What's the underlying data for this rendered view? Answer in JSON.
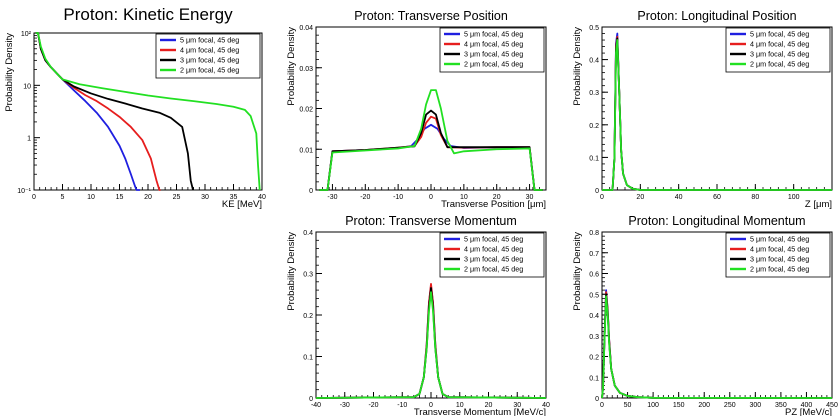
{
  "colors": {
    "blue": "#1f1fe0",
    "red": "#e61e1e",
    "black": "#000000",
    "green": "#22e022"
  },
  "legend_labels": [
    "5 μm focal, 45 deg",
    "4 μm focal, 45 deg",
    "3 μm focal, 45 deg",
    "2 μm focal, 45 deg"
  ],
  "chart_data": [
    {
      "id": "ke",
      "type": "line",
      "title": "Proton: Kinetic Energy",
      "xlabel": "KE [MeV]",
      "ylabel": "Probability Density",
      "xlim": [
        0,
        40
      ],
      "ylim": [
        0.1,
        100
      ],
      "log_y": true,
      "x_ticks": [
        0,
        5,
        10,
        15,
        20,
        25,
        30,
        35,
        40
      ],
      "y_ticks": [
        {
          "v": 0.1,
          "label": "10⁻¹"
        },
        {
          "v": 1,
          "label": "1"
        },
        {
          "v": 10,
          "label": "10"
        },
        {
          "v": 100,
          "label": "10²"
        }
      ],
      "series": [
        {
          "name": "5 μm focal, 45 deg",
          "color": "blue",
          "x": [
            0.3,
            0.7,
            1.2,
            2,
            3,
            5,
            7,
            9,
            11,
            13,
            15,
            16,
            17,
            17.7,
            18,
            18.3,
            18.6
          ],
          "y": [
            200,
            100,
            50,
            30,
            22,
            13,
            8,
            5,
            3,
            1.6,
            0.7,
            0.4,
            0.2,
            0.12,
            0.1,
            0.1,
            0.1
          ]
        },
        {
          "name": "4 μm focal, 45 deg",
          "color": "red",
          "x": [
            0.3,
            0.7,
            1.2,
            2,
            3,
            5,
            7,
            9,
            11,
            13,
            15,
            17,
            19,
            20.5,
            21.5,
            22,
            22.2
          ],
          "y": [
            200,
            100,
            50,
            30,
            22,
            13,
            9,
            6.5,
            5,
            3.6,
            2.5,
            1.6,
            0.9,
            0.4,
            0.15,
            0.1,
            0.1
          ]
        },
        {
          "name": "3 μm focal, 45 deg",
          "color": "black",
          "x": [
            0.3,
            0.7,
            1.2,
            2,
            3,
            5,
            7,
            10,
            13,
            16,
            19,
            22,
            24,
            26,
            27,
            27.5,
            27.9
          ],
          "y": [
            200,
            100,
            50,
            30,
            22,
            13,
            9.5,
            7,
            5.5,
            4.5,
            3.6,
            3,
            2.4,
            1.6,
            0.5,
            0.15,
            0.1
          ]
        },
        {
          "name": "2 μm focal, 45 deg",
          "color": "green",
          "x": [
            0.3,
            0.7,
            1.2,
            2,
            3,
            5,
            8,
            12,
            16,
            20,
            24,
            28,
            32,
            35,
            37,
            38,
            39,
            39.3,
            39.6
          ],
          "y": [
            220,
            110,
            55,
            32,
            22,
            13,
            10.5,
            8.8,
            7.5,
            6.4,
            5.6,
            5,
            4.4,
            3.9,
            3.4,
            2.6,
            1.2,
            0.3,
            0.1
          ]
        }
      ]
    },
    {
      "id": "trans_pos",
      "type": "line",
      "title": "Proton: Transverse Position",
      "xlabel": "Transverse Position [μm]",
      "ylabel": "Probability Density",
      "xlim": [
        -35,
        35
      ],
      "ylim": [
        0,
        0.04
      ],
      "x_ticks": [
        -30,
        -20,
        -10,
        0,
        10,
        20,
        30
      ],
      "y_ticks": [
        {
          "v": 0,
          "label": "0"
        },
        {
          "v": 0.01,
          "label": "0.01"
        },
        {
          "v": 0.02,
          "label": "0.02"
        },
        {
          "v": 0.03,
          "label": "0.03"
        },
        {
          "v": 0.04,
          "label": "0.04"
        }
      ],
      "series": [
        {
          "name": "5 μm focal, 45 deg",
          "color": "blue",
          "x": [
            -34,
            -31.5,
            -30,
            -20,
            -10,
            -6,
            -4,
            -2,
            0,
            2,
            4,
            6,
            10,
            20,
            30,
            31.5,
            34
          ],
          "y": [
            0,
            0,
            0.0095,
            0.0098,
            0.0103,
            0.0108,
            0.0125,
            0.015,
            0.016,
            0.015,
            0.0125,
            0.0108,
            0.0103,
            0.0105,
            0.0105,
            0,
            0
          ]
        },
        {
          "name": "4 μm focal, 45 deg",
          "color": "red",
          "x": [
            -34,
            -31.5,
            -30,
            -20,
            -10,
            -5,
            -3,
            -1.5,
            0,
            1.5,
            3,
            5,
            10,
            20,
            30,
            31.5,
            34
          ],
          "y": [
            0,
            0,
            0.0095,
            0.0098,
            0.0104,
            0.0108,
            0.013,
            0.0165,
            0.018,
            0.0175,
            0.0135,
            0.0105,
            0.0104,
            0.0105,
            0.0105,
            0,
            0
          ]
        },
        {
          "name": "3 μm focal, 45 deg",
          "color": "black",
          "x": [
            -34,
            -31.5,
            -30,
            -20,
            -10,
            -5,
            -3,
            -1.5,
            0,
            1.5,
            3,
            5,
            10,
            20,
            30,
            31.5,
            34
          ],
          "y": [
            0,
            0,
            0.0095,
            0.0098,
            0.0104,
            0.0107,
            0.014,
            0.0185,
            0.0195,
            0.0185,
            0.014,
            0.0105,
            0.0105,
            0.0105,
            0.0105,
            0,
            0
          ]
        },
        {
          "name": "2 μm focal, 45 deg",
          "color": "green",
          "x": [
            -34,
            -31.5,
            -30,
            -20,
            -10,
            -5,
            -3,
            -1.5,
            0,
            1.5,
            3,
            5,
            7,
            10,
            20,
            30,
            31.5,
            34
          ],
          "y": [
            0,
            0,
            0.0092,
            0.0097,
            0.0102,
            0.0108,
            0.015,
            0.021,
            0.0245,
            0.0245,
            0.02,
            0.012,
            0.009,
            0.0095,
            0.01,
            0.0102,
            0,
            0
          ]
        }
      ]
    },
    {
      "id": "long_pos",
      "type": "line",
      "title": "Proton: Longitudinal Position",
      "xlabel": "Z [μm]",
      "ylabel": "Probability Density",
      "xlim": [
        0,
        120
      ],
      "ylim": [
        0,
        0.5
      ],
      "x_ticks": [
        0,
        20,
        40,
        60,
        80,
        100
      ],
      "y_ticks": [
        {
          "v": 0,
          "label": "0"
        },
        {
          "v": 0.1,
          "label": "0.1"
        },
        {
          "v": 0.2,
          "label": "0.2"
        },
        {
          "v": 0.3,
          "label": "0.3"
        },
        {
          "v": 0.4,
          "label": "0.4"
        },
        {
          "v": 0.5,
          "label": "0.5"
        }
      ],
      "series": [
        {
          "name": "5 μm focal, 45 deg",
          "color": "blue",
          "x": [
            0,
            5.5,
            6.5,
            7.3,
            8,
            9,
            10,
            11,
            13,
            16,
            20,
            120
          ],
          "y": [
            0,
            0,
            0.1,
            0.45,
            0.48,
            0.3,
            0.12,
            0.05,
            0.015,
            0.004,
            0,
            0
          ]
        },
        {
          "name": "4 μm focal, 45 deg",
          "color": "red",
          "x": [
            0,
            5.5,
            6.5,
            7.3,
            8,
            9,
            10,
            11,
            13,
            16,
            20,
            120
          ],
          "y": [
            0,
            0,
            0.1,
            0.44,
            0.47,
            0.3,
            0.12,
            0.05,
            0.015,
            0.004,
            0,
            0
          ]
        },
        {
          "name": "3 μm focal, 45 deg",
          "color": "black",
          "x": [
            0,
            5.5,
            6.5,
            7.3,
            8,
            9,
            10,
            11,
            13,
            16,
            20,
            120
          ],
          "y": [
            0,
            0,
            0.1,
            0.43,
            0.465,
            0.3,
            0.12,
            0.05,
            0.015,
            0.004,
            0,
            0
          ]
        },
        {
          "name": "2 μm focal, 45 deg",
          "color": "green",
          "x": [
            0,
            5.5,
            6.5,
            7.3,
            8,
            9,
            10,
            11,
            13,
            16,
            20,
            120
          ],
          "y": [
            0,
            0,
            0.1,
            0.42,
            0.46,
            0.3,
            0.12,
            0.05,
            0.015,
            0.004,
            0,
            0
          ]
        }
      ]
    },
    {
      "id": "trans_mom",
      "type": "line",
      "title": "Proton: Transverse Momentum",
      "xlabel": "Transverse Momentum [MeV/c]",
      "ylabel": "Probability Density",
      "xlim": [
        -40,
        40
      ],
      "ylim": [
        0,
        0.4
      ],
      "x_ticks": [
        -40,
        -30,
        -20,
        -10,
        0,
        10,
        20,
        30,
        40
      ],
      "y_ticks": [
        {
          "v": 0,
          "label": "0"
        },
        {
          "v": 0.1,
          "label": "0.1"
        },
        {
          "v": 0.2,
          "label": "0.2"
        },
        {
          "v": 0.3,
          "label": "0.3"
        },
        {
          "v": 0.4,
          "label": "0.4"
        }
      ],
      "series": [
        {
          "name": "5 μm focal, 45 deg",
          "color": "blue",
          "x": [
            -40,
            -6,
            -4,
            -2.5,
            -1.5,
            -0.7,
            0,
            0.7,
            1.5,
            2.5,
            4,
            6,
            40
          ],
          "y": [
            0,
            0.002,
            0.01,
            0.05,
            0.13,
            0.23,
            0.27,
            0.23,
            0.13,
            0.05,
            0.01,
            0.002,
            0
          ]
        },
        {
          "name": "4 μm focal, 45 deg",
          "color": "red",
          "x": [
            -40,
            -6,
            -4,
            -2.5,
            -1.5,
            -0.7,
            0,
            0.7,
            1.5,
            2.5,
            4,
            6,
            40
          ],
          "y": [
            0,
            0.002,
            0.01,
            0.05,
            0.13,
            0.23,
            0.275,
            0.23,
            0.13,
            0.05,
            0.01,
            0.002,
            0
          ]
        },
        {
          "name": "3 μm focal, 45 deg",
          "color": "black",
          "x": [
            -40,
            -6,
            -4,
            -2.5,
            -1.5,
            -0.7,
            0,
            0.7,
            1.5,
            2.5,
            4,
            6,
            40
          ],
          "y": [
            0,
            0.002,
            0.01,
            0.05,
            0.12,
            0.22,
            0.265,
            0.22,
            0.12,
            0.05,
            0.01,
            0.002,
            0
          ]
        },
        {
          "name": "2 μm focal, 45 deg",
          "color": "green",
          "x": [
            -40,
            -6,
            -4,
            -2.5,
            -1.5,
            -0.7,
            0,
            0.7,
            1.5,
            2.5,
            4,
            6,
            40
          ],
          "y": [
            0,
            0.002,
            0.01,
            0.05,
            0.12,
            0.21,
            0.255,
            0.21,
            0.12,
            0.05,
            0.01,
            0.002,
            0
          ]
        }
      ]
    },
    {
      "id": "long_mom",
      "type": "line",
      "title": "Proton: Longitudinal Momentum",
      "xlabel": "PZ [MeV/c]",
      "ylabel": "Probability Density",
      "xlim": [
        0,
        450
      ],
      "ylim": [
        0,
        0.8
      ],
      "x_ticks": [
        0,
        50,
        100,
        150,
        200,
        250,
        300,
        350,
        400,
        450
      ],
      "y_ticks": [
        {
          "v": 0,
          "label": "0"
        },
        {
          "v": 0.1,
          "label": "0.1"
        },
        {
          "v": 0.2,
          "label": "0.2"
        },
        {
          "v": 0.3,
          "label": "0.3"
        },
        {
          "v": 0.4,
          "label": "0.4"
        },
        {
          "v": 0.5,
          "label": "0.5"
        },
        {
          "v": 0.6,
          "label": "0.6"
        },
        {
          "v": 0.7,
          "label": "0.7"
        },
        {
          "v": 0.8,
          "label": "0.8"
        }
      ],
      "series": [
        {
          "name": "5 μm focal, 45 deg",
          "color": "blue",
          "x": [
            0,
            2,
            5,
            8,
            11,
            14,
            18,
            25,
            35,
            50,
            70,
            100,
            450
          ],
          "y": [
            0,
            0.05,
            0.3,
            0.52,
            0.43,
            0.28,
            0.14,
            0.06,
            0.025,
            0.01,
            0.004,
            0.001,
            0
          ]
        },
        {
          "name": "4 μm focal, 45 deg",
          "color": "red",
          "x": [
            0,
            2,
            5,
            8,
            11,
            14,
            18,
            25,
            35,
            50,
            70,
            100,
            450
          ],
          "y": [
            0,
            0.05,
            0.3,
            0.51,
            0.43,
            0.28,
            0.14,
            0.06,
            0.025,
            0.01,
            0.004,
            0.001,
            0
          ]
        },
        {
          "name": "3 μm focal, 45 deg",
          "color": "black",
          "x": [
            0,
            2,
            5,
            8,
            11,
            14,
            18,
            25,
            35,
            50,
            70,
            100,
            450
          ],
          "y": [
            0,
            0.05,
            0.3,
            0.5,
            0.42,
            0.27,
            0.14,
            0.06,
            0.025,
            0.01,
            0.004,
            0.001,
            0
          ]
        },
        {
          "name": "2 μm focal, 45 deg",
          "color": "green",
          "x": [
            0,
            2,
            5,
            8,
            11,
            14,
            18,
            25,
            35,
            50,
            70,
            100,
            450
          ],
          "y": [
            0,
            0.05,
            0.29,
            0.49,
            0.41,
            0.26,
            0.14,
            0.06,
            0.025,
            0.01,
            0.004,
            0.001,
            0
          ]
        }
      ]
    }
  ]
}
